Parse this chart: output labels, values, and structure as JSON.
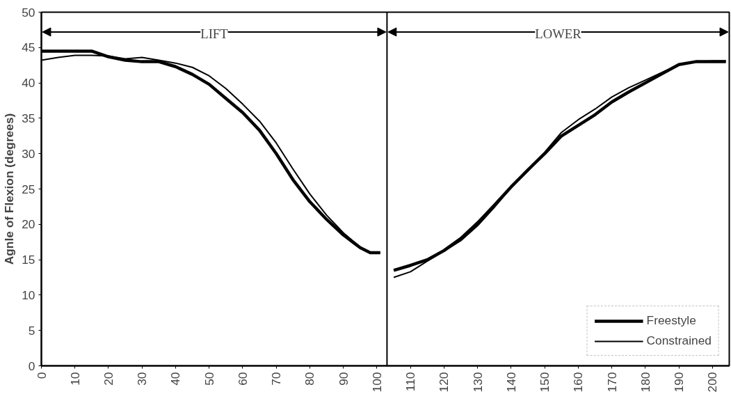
{
  "chart_data": {
    "type": "line",
    "ylabel": "Agnle of Flexion (degrees)",
    "xlim": [
      0,
      205
    ],
    "xticks": [
      0,
      10,
      20,
      30,
      40,
      50,
      60,
      70,
      80,
      90,
      100,
      110,
      120,
      130,
      140,
      150,
      160,
      170,
      180,
      190,
      200
    ],
    "ylim": [
      0,
      50
    ],
    "yticks": [
      0,
      5,
      10,
      15,
      20,
      25,
      30,
      35,
      40,
      45,
      50
    ],
    "series": [
      {
        "name": "Freestyle",
        "color": "#000000",
        "x": [
          0,
          5,
          10,
          15,
          20,
          25,
          30,
          35,
          40,
          45,
          50,
          55,
          60,
          65,
          70,
          75,
          80,
          85,
          90,
          95,
          98,
          101
        ],
        "values": [
          44.5,
          44.5,
          44.5,
          44.5,
          43.7,
          43.2,
          43.0,
          43.0,
          42.3,
          41.2,
          39.8,
          37.8,
          35.8,
          33.3,
          30.0,
          26.3,
          23.2,
          20.7,
          18.5,
          16.7,
          16.0,
          16.0
        ]
      },
      {
        "name": "Constrained",
        "color": "#000000",
        "x": [
          0,
          5,
          10,
          15,
          20,
          25,
          30,
          35,
          40,
          45,
          50,
          55,
          60,
          65,
          70,
          75,
          80,
          85,
          90,
          95,
          98,
          101
        ],
        "values": [
          43.2,
          43.6,
          43.9,
          43.9,
          43.8,
          43.4,
          43.6,
          43.2,
          42.8,
          42.2,
          41.0,
          39.2,
          37.0,
          34.6,
          31.5,
          27.8,
          24.3,
          21.3,
          18.8,
          16.8,
          16.0,
          16.0
        ]
      },
      {
        "color": "#000000",
        "x": [
          105,
          110,
          115,
          120,
          125,
          130,
          135,
          140,
          145,
          150,
          155,
          160,
          165,
          170,
          175,
          180,
          185,
          190,
          195,
          200,
          204
        ],
        "values": [
          13.5,
          14.2,
          15.0,
          16.3,
          18.0,
          20.2,
          22.7,
          25.3,
          27.7,
          30.0,
          32.5,
          34.0,
          35.5,
          37.3,
          38.7,
          40.0,
          41.3,
          42.6,
          43.0,
          43.0,
          43.0
        ]
      },
      {
        "color": "#000000",
        "x": [
          105,
          110,
          115,
          120,
          125,
          130,
          135,
          140,
          145,
          150,
          155,
          160,
          165,
          170,
          175,
          180,
          185,
          190,
          195,
          200,
          204
        ],
        "values": [
          12.5,
          13.3,
          14.8,
          16.2,
          17.7,
          19.8,
          22.4,
          25.2,
          27.8,
          30.2,
          33.0,
          34.8,
          36.3,
          38.0,
          39.3,
          40.4,
          41.5,
          42.6,
          43.0,
          43.1,
          43.1
        ]
      }
    ],
    "ref_lines": [
      {
        "axis": "x",
        "value": 103
      }
    ],
    "annotations": [
      {
        "text": "LIFT",
        "x": 103,
        "y": 47.2
      },
      {
        "text": "LOWER",
        "x": 103,
        "y": 47.2
      }
    ],
    "legend": "bottom right",
    "grid": false,
    "marker": "none",
    "line_style": "solid"
  }
}
